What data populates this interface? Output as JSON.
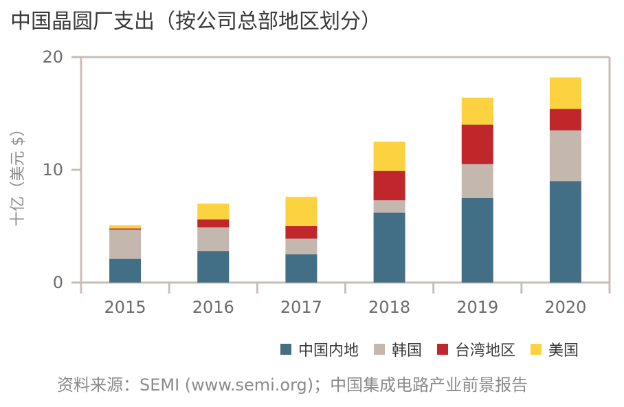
{
  "title": "中国晶圆厂支出（按公司总部地区划分）",
  "source": "资料来源：SEMI (www.semi.org)；中国集成电路产业前景报告",
  "chart_data": {
    "type": "bar",
    "stacked": true,
    "categories": [
      "2015",
      "2016",
      "2017",
      "2018",
      "2019",
      "2020"
    ],
    "series": [
      {
        "name": "中国内地",
        "color": "#436f86",
        "values": [
          2.1,
          2.8,
          2.5,
          6.2,
          7.5,
          9.0
        ]
      },
      {
        "name": "韩国",
        "color": "#c4b8ae",
        "values": [
          2.6,
          2.1,
          1.4,
          1.1,
          3.0,
          4.5
        ]
      },
      {
        "name": "台湾地区",
        "color": "#c0272d",
        "values": [
          0.1,
          0.7,
          1.1,
          2.6,
          3.5,
          1.9
        ]
      },
      {
        "name": "美国",
        "color": "#fcd240",
        "values": [
          0.3,
          1.4,
          2.6,
          2.6,
          2.4,
          2.8
        ]
      }
    ],
    "ylabel": "十亿（美元 $）",
    "ylim": [
      0,
      20
    ],
    "yticks": [
      0,
      10,
      20
    ],
    "legend_position": "bottom-right",
    "grid": false
  }
}
